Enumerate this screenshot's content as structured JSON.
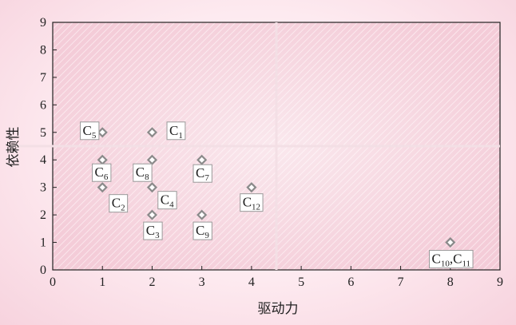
{
  "chart_data": {
    "type": "scatter",
    "title": "",
    "xlabel": "驱动力",
    "ylabel": "依赖性",
    "xlim": [
      0,
      9
    ],
    "ylim": [
      0,
      9
    ],
    "x_ticks": [
      "0",
      "1",
      "2",
      "3",
      "4",
      "5",
      "6",
      "7",
      "8",
      "9"
    ],
    "y_ticks": [
      "0",
      "1",
      "2",
      "3",
      "4",
      "5",
      "6",
      "7",
      "8",
      "9"
    ],
    "grid": false,
    "quadrant_divider": {
      "x": 4.5,
      "y": 4.5
    },
    "points": [
      {
        "label": "C",
        "sub": "1",
        "x": 2,
        "y": 5
      },
      {
        "label": "C",
        "sub": "2",
        "x": 1,
        "y": 3
      },
      {
        "label": "C",
        "sub": "3",
        "x": 2,
        "y": 2
      },
      {
        "label": "C",
        "sub": "4",
        "x": 2,
        "y": 3
      },
      {
        "label": "C",
        "sub": "5",
        "x": 1,
        "y": 5
      },
      {
        "label": "C",
        "sub": "6",
        "x": 1,
        "y": 4
      },
      {
        "label": "C",
        "sub": "7",
        "x": 3,
        "y": 4
      },
      {
        "label": "C",
        "sub": "8",
        "x": 2,
        "y": 4
      },
      {
        "label": "C",
        "sub": "9",
        "x": 3,
        "y": 2
      },
      {
        "label": "C",
        "sub": "12",
        "x": 4,
        "y": 3
      },
      {
        "label": "C",
        "sub": "10",
        "label2": ",C",
        "sub2": "11",
        "x": 8,
        "y": 1
      }
    ],
    "colors": {
      "marker": "#8a8a8a",
      "plot_background": "#f6d2dd",
      "page_background": "#fbe3ea",
      "divider": "#f3dfe5"
    }
  }
}
